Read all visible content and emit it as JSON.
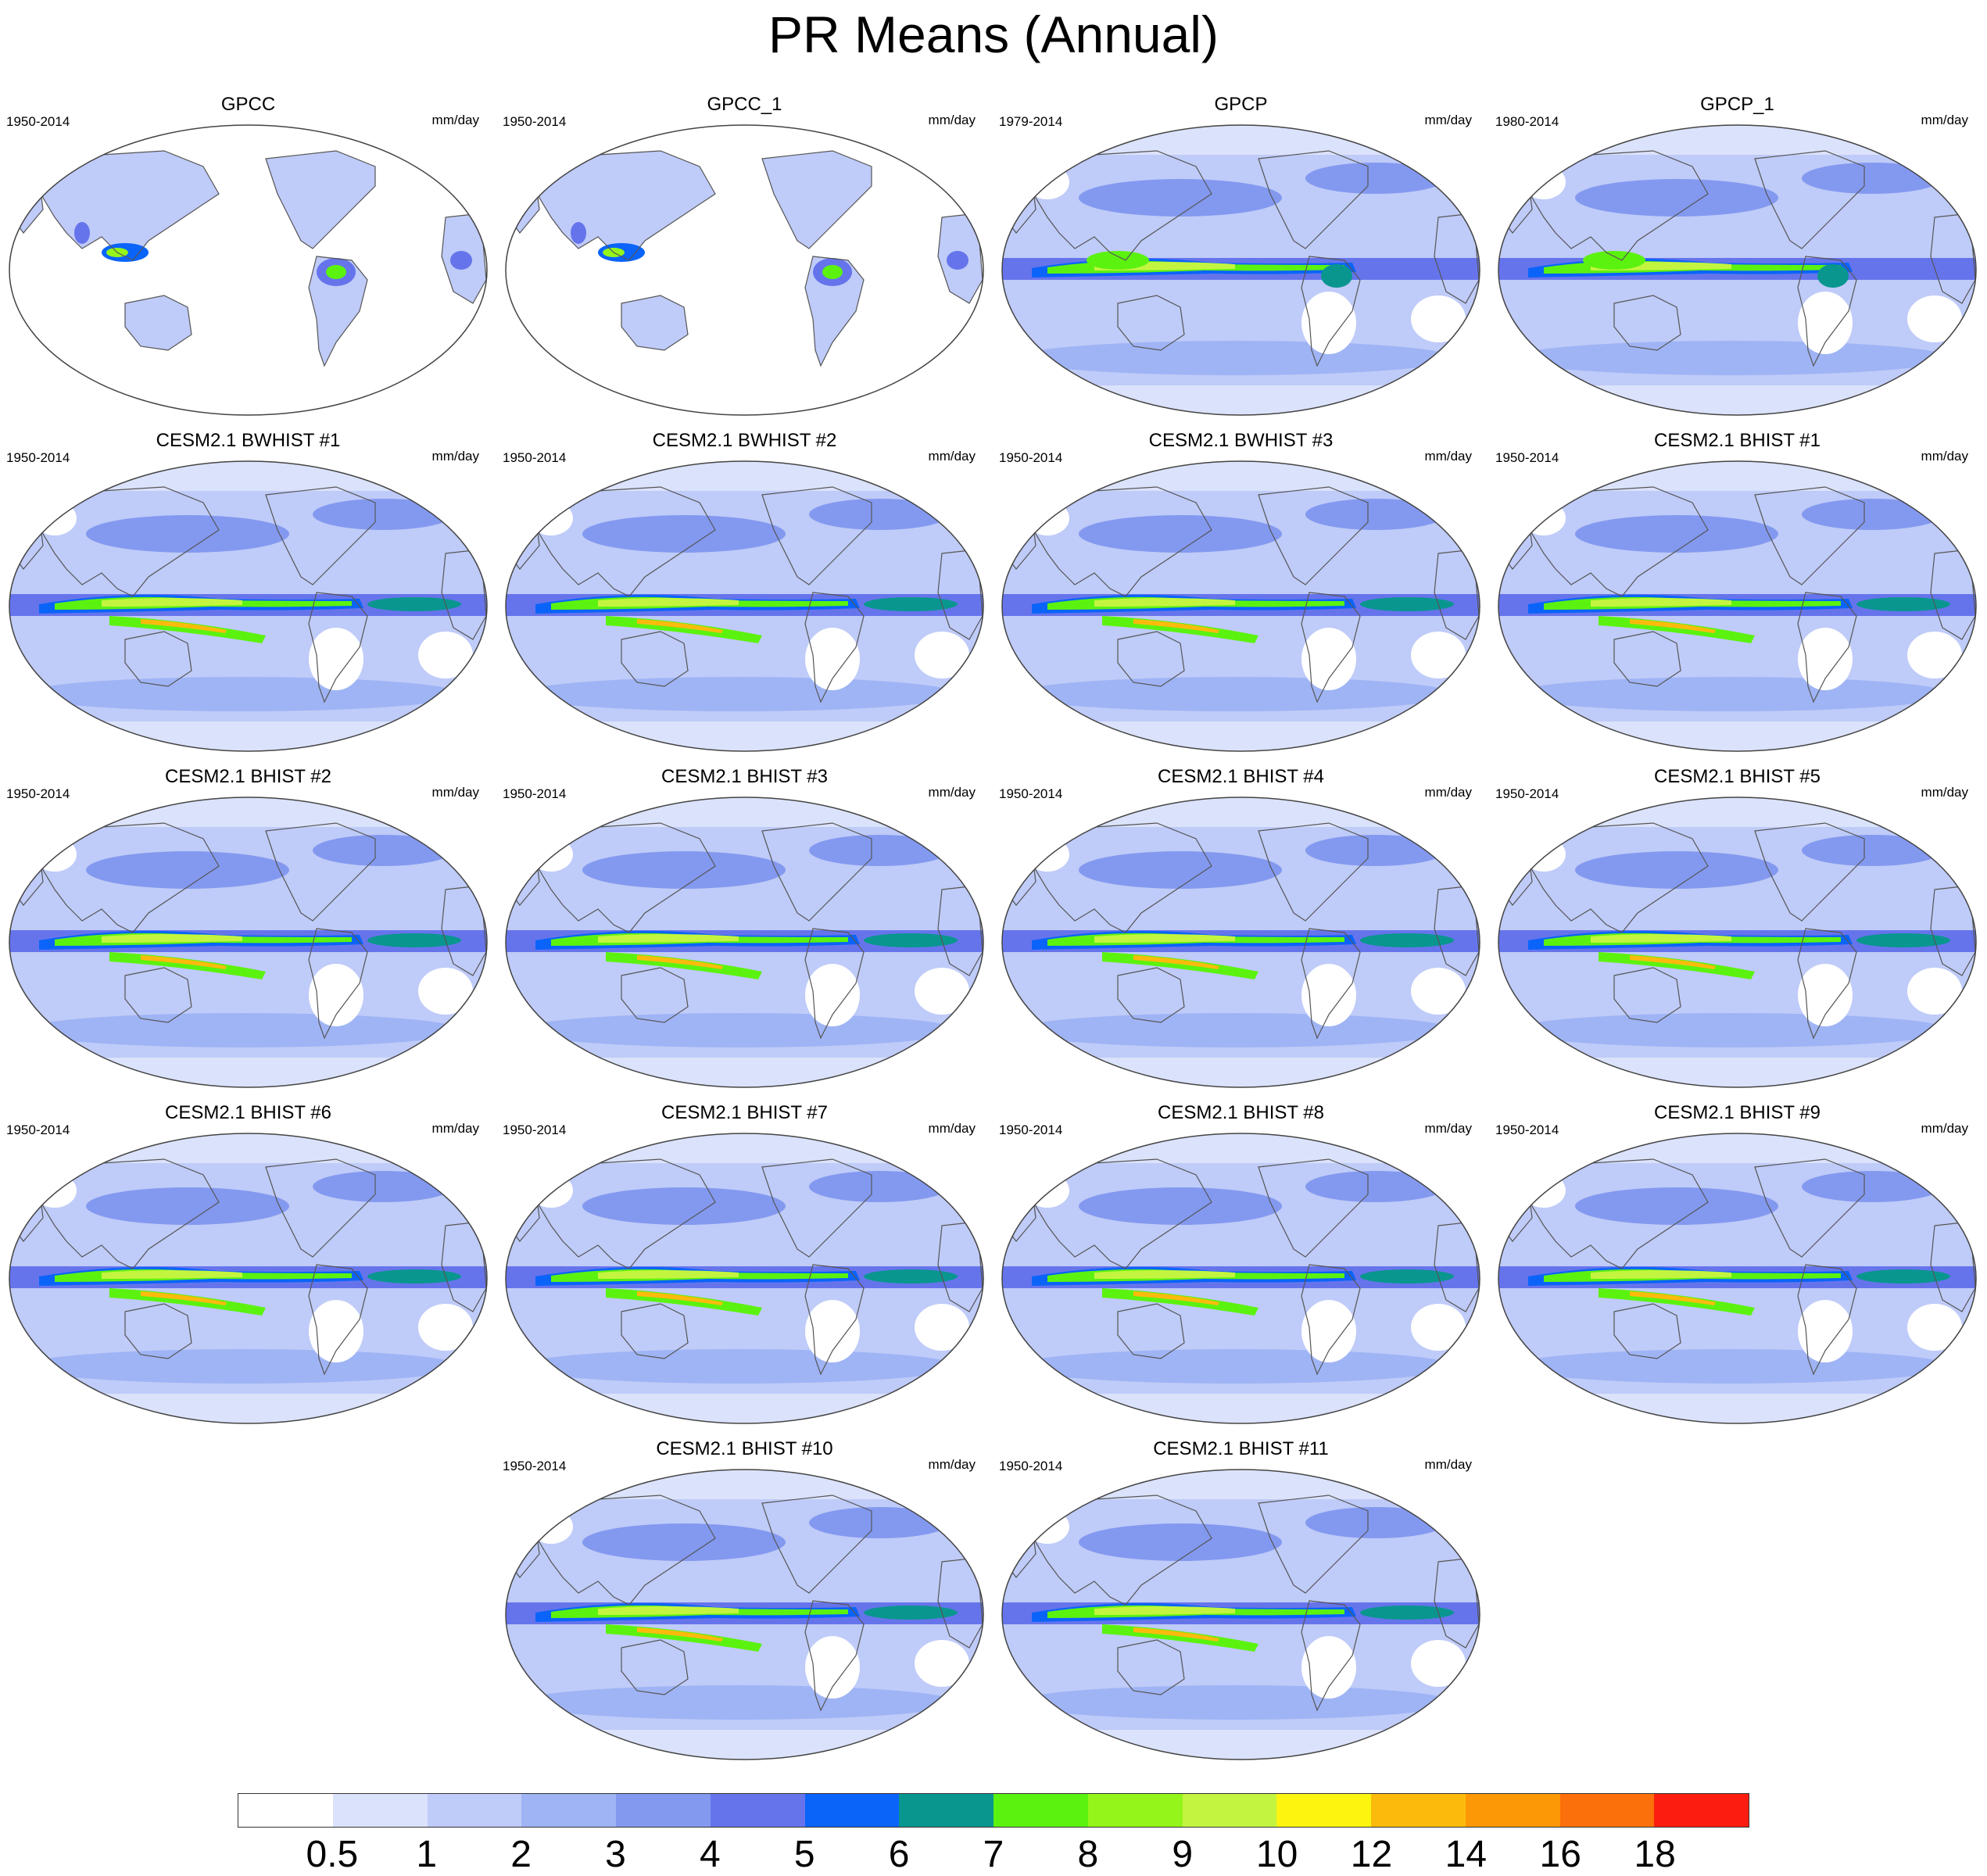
{
  "title": "PR Means (Annual)",
  "units": "mm/day",
  "colorbar": {
    "labels": [
      "0.5",
      "1",
      "2",
      "3",
      "4",
      "5",
      "6",
      "7",
      "8",
      "9",
      "10",
      "12",
      "14",
      "16",
      "18"
    ],
    "colors": [
      "#ffffff",
      "#dbe2fb",
      "#bfcbf8",
      "#9fb4f5",
      "#8399f0",
      "#6674ec",
      "#0a64fa",
      "#09968f",
      "#5cf210",
      "#94f51a",
      "#c3f540",
      "#fbf510",
      "#fcbb0c",
      "#fc9806",
      "#fb700a",
      "#fb1e10"
    ]
  },
  "panels": [
    {
      "title": "GPCC",
      "years": "1950-2014",
      "variant": "gpcc"
    },
    {
      "title": "GPCC_1",
      "years": "1950-2014",
      "variant": "gpcc"
    },
    {
      "title": "GPCP",
      "years": "1979-2014",
      "variant": "gpcp"
    },
    {
      "title": "GPCP_1",
      "years": "1980-2014",
      "variant": "gpcp"
    },
    {
      "title": "CESM2.1 BWHIST #1",
      "years": "1950-2014",
      "variant": "model"
    },
    {
      "title": "CESM2.1 BWHIST #2",
      "years": "1950-2014",
      "variant": "model"
    },
    {
      "title": "CESM2.1 BWHIST #3",
      "years": "1950-2014",
      "variant": "model"
    },
    {
      "title": "CESM2.1 BHIST #1",
      "years": "1950-2014",
      "variant": "model"
    },
    {
      "title": "CESM2.1 BHIST #2",
      "years": "1950-2014",
      "variant": "model"
    },
    {
      "title": "CESM2.1 BHIST #3",
      "years": "1950-2014",
      "variant": "model"
    },
    {
      "title": "CESM2.1 BHIST #4",
      "years": "1950-2014",
      "variant": "model"
    },
    {
      "title": "CESM2.1 BHIST #5",
      "years": "1950-2014",
      "variant": "model"
    },
    {
      "title": "CESM2.1 BHIST #6",
      "years": "1950-2014",
      "variant": "model"
    },
    {
      "title": "CESM2.1 BHIST #7",
      "years": "1950-2014",
      "variant": "model"
    },
    {
      "title": "CESM2.1 BHIST #8",
      "years": "1950-2014",
      "variant": "model"
    },
    {
      "title": "CESM2.1 BHIST #9",
      "years": "1950-2014",
      "variant": "model"
    },
    {
      "title": "CESM2.1 BHIST #10",
      "years": "1950-2014",
      "variant": "model"
    },
    {
      "title": "CESM2.1 BHIST #11",
      "years": "1950-2014",
      "variant": "model"
    }
  ]
}
